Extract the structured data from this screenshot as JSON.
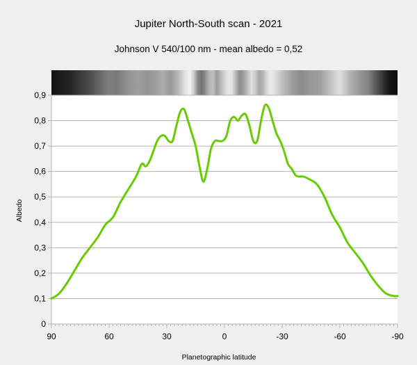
{
  "chart_data": {
    "type": "line",
    "title": "Jupiter North-South scan - 2021",
    "subtitle": "Johnson V 540/100 nm - mean albedo = 0,52",
    "xlabel": "Planetographic latitude",
    "ylabel": "Albedo",
    "xlim": [
      90,
      -90
    ],
    "ylim": [
      0,
      0.9
    ],
    "x_ticks": [
      90,
      60,
      30,
      0,
      -30,
      -60,
      -90
    ],
    "x_tick_labels": [
      "90",
      "60",
      "30",
      "0",
      "-30",
      "-60",
      "-90"
    ],
    "y_ticks": [
      0,
      0.1,
      0.2,
      0.3,
      0.4,
      0.5,
      0.6,
      0.7,
      0.8,
      0.9
    ],
    "y_tick_labels": [
      "0",
      "0,1",
      "0,2",
      "0,3",
      "0,4",
      "0,5",
      "0,6",
      "0,7",
      "0,8",
      "0,9"
    ],
    "grid": true,
    "line_color": "#66cc00",
    "series": [
      {
        "x": [
          90,
          86,
          82,
          78,
          74,
          70,
          66,
          62,
          58,
          54,
          50,
          46,
          43,
          41,
          39,
          37,
          35,
          33,
          31,
          29,
          27,
          25,
          23,
          21,
          19,
          17,
          15,
          13,
          11,
          9,
          7,
          5,
          3,
          1,
          -1,
          -3,
          -5,
          -7,
          -9,
          -11,
          -13,
          -15,
          -17,
          -19,
          -21,
          -23,
          -25,
          -27,
          -29,
          -31,
          -33,
          -35,
          -37,
          -39,
          -41,
          -44,
          -48,
          -52,
          -56,
          -60,
          -64,
          -68,
          -72,
          -76,
          -80,
          -84,
          -88,
          -90
        ],
        "y": [
          0.1,
          0.12,
          0.16,
          0.21,
          0.26,
          0.3,
          0.34,
          0.39,
          0.42,
          0.48,
          0.53,
          0.58,
          0.63,
          0.62,
          0.64,
          0.68,
          0.72,
          0.74,
          0.74,
          0.72,
          0.72,
          0.78,
          0.835,
          0.845,
          0.8,
          0.75,
          0.7,
          0.62,
          0.56,
          0.61,
          0.69,
          0.72,
          0.72,
          0.72,
          0.74,
          0.8,
          0.815,
          0.8,
          0.82,
          0.825,
          0.78,
          0.72,
          0.72,
          0.8,
          0.86,
          0.85,
          0.8,
          0.75,
          0.72,
          0.68,
          0.63,
          0.61,
          0.585,
          0.58,
          0.58,
          0.57,
          0.55,
          0.5,
          0.43,
          0.38,
          0.32,
          0.28,
          0.24,
          0.19,
          0.15,
          0.12,
          0.11,
          0.11
        ]
      }
    ],
    "scan_strip": {
      "lat": [
        90,
        80,
        70,
        65,
        60,
        56,
        52,
        48,
        44,
        40,
        36,
        32,
        28,
        24,
        22,
        20,
        18,
        16,
        14,
        12,
        10,
        8,
        6,
        4,
        2,
        0,
        -2,
        -4,
        -6,
        -8,
        -10,
        -12,
        -14,
        -16,
        -18,
        -20,
        -22,
        -24,
        -26,
        -30,
        -35,
        -40,
        -45,
        -50,
        -55,
        -60,
        -65,
        -70,
        -75,
        -80,
        -85,
        -90
      ],
      "brightness": [
        0.08,
        0.15,
        0.3,
        0.4,
        0.5,
        0.48,
        0.55,
        0.6,
        0.62,
        0.58,
        0.62,
        0.68,
        0.6,
        0.72,
        0.82,
        0.9,
        0.95,
        0.8,
        0.55,
        0.45,
        0.55,
        0.7,
        0.75,
        0.6,
        0.72,
        0.82,
        0.9,
        0.88,
        0.7,
        0.55,
        0.62,
        0.75,
        0.88,
        0.8,
        0.65,
        0.7,
        0.85,
        0.92,
        0.88,
        0.75,
        0.62,
        0.55,
        0.6,
        0.62,
        0.75,
        0.88,
        0.7,
        0.6,
        0.5,
        0.3,
        0.1,
        0.05
      ]
    }
  }
}
